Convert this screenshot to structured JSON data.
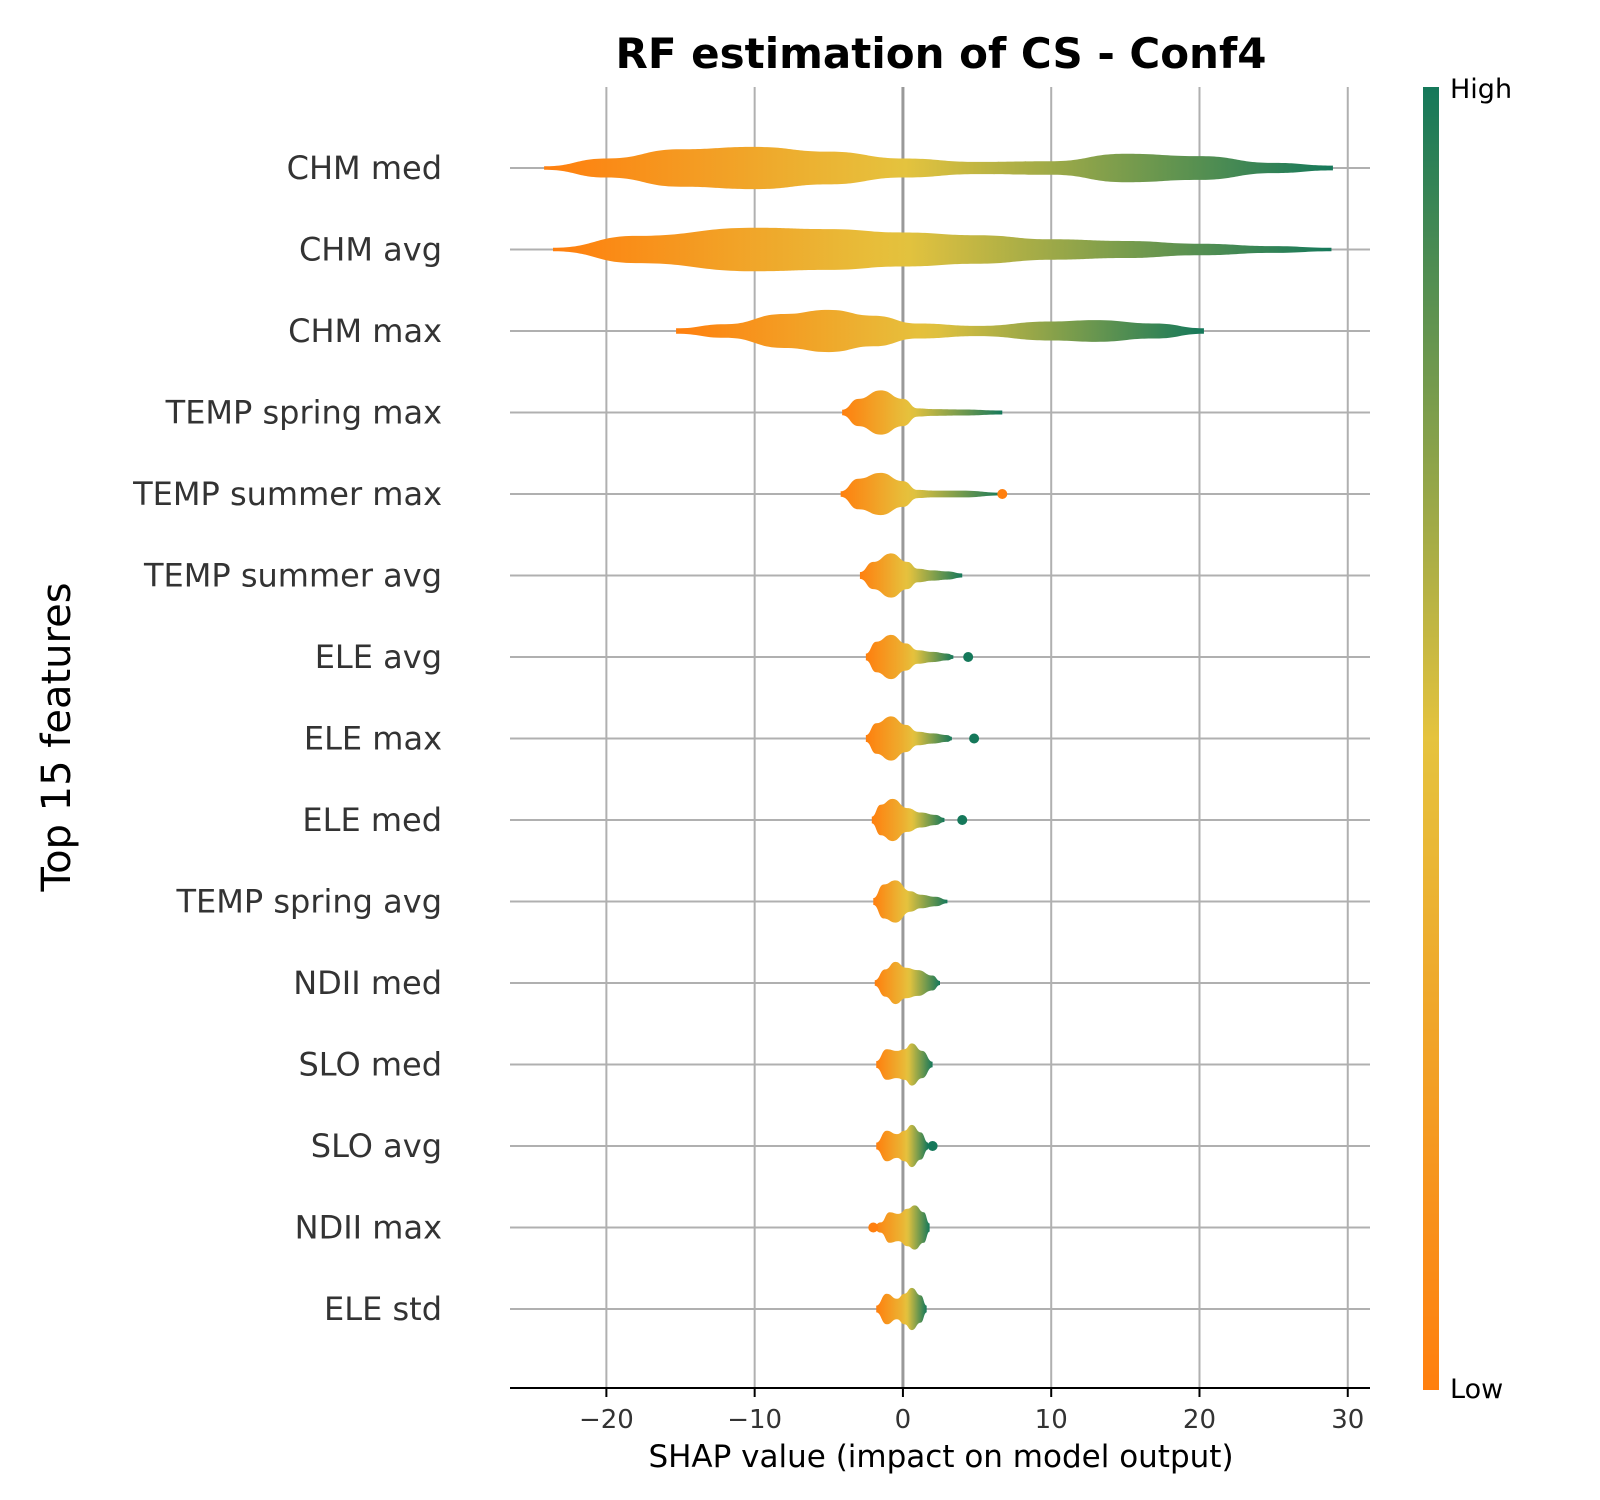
{
  "chart_data": {
    "type": "violin",
    "title": "RF estimation of CS - Conf4",
    "xlabel": "SHAP value (impact on model output)",
    "ylabel": "Top 15 features",
    "xlim": [
      -26.5,
      31.5
    ],
    "xticks": [
      -20,
      -10,
      0,
      10,
      20,
      30
    ],
    "xtick_labels": [
      "−20",
      "−10",
      "0",
      "10",
      "20",
      "30"
    ],
    "grid": true,
    "colorbar": {
      "high_label": "High",
      "low_label": "Low",
      "high_color": "#15785a",
      "mid_color": "#e5c33e",
      "low_color": "#ff7f0e"
    },
    "features": [
      {
        "name": "CHM med",
        "min": -24.2,
        "max": 29.0,
        "zero_color": 0.5,
        "profile": [
          [
            -24.2,
            0.05
          ],
          [
            -20,
            0.28
          ],
          [
            -15,
            0.55
          ],
          [
            -10,
            0.62
          ],
          [
            -5,
            0.48
          ],
          [
            0,
            0.28
          ],
          [
            5,
            0.18
          ],
          [
            10,
            0.2
          ],
          [
            15,
            0.42
          ],
          [
            20,
            0.35
          ],
          [
            25,
            0.15
          ],
          [
            29,
            0.07
          ]
        ]
      },
      {
        "name": "CHM avg",
        "min": -23.6,
        "max": 28.9,
        "zero_color": 0.5,
        "profile": [
          [
            -23.6,
            0.05
          ],
          [
            -18,
            0.4
          ],
          [
            -10,
            0.64
          ],
          [
            -5,
            0.6
          ],
          [
            0,
            0.5
          ],
          [
            5,
            0.42
          ],
          [
            10,
            0.3
          ],
          [
            15,
            0.25
          ],
          [
            20,
            0.17
          ],
          [
            25,
            0.1
          ],
          [
            28.9,
            0.05
          ]
        ]
      },
      {
        "name": "CHM max",
        "min": -15.3,
        "max": 20.3,
        "zero_color": 0.45,
        "profile": [
          [
            -15.3,
            0.08
          ],
          [
            -12,
            0.2
          ],
          [
            -8,
            0.5
          ],
          [
            -5,
            0.62
          ],
          [
            -2,
            0.45
          ],
          [
            1,
            0.22
          ],
          [
            5,
            0.15
          ],
          [
            10,
            0.28
          ],
          [
            13,
            0.32
          ],
          [
            17,
            0.22
          ],
          [
            20.3,
            0.08
          ]
        ]
      },
      {
        "name": "TEMP spring max",
        "min": -4.1,
        "max": 6.7,
        "zero_color": 0.45,
        "profile": [
          [
            -4.1,
            0.08
          ],
          [
            -3,
            0.4
          ],
          [
            -1.5,
            0.65
          ],
          [
            0,
            0.4
          ],
          [
            1,
            0.12
          ],
          [
            2,
            0.1
          ],
          [
            4,
            0.09
          ],
          [
            6.7,
            0.06
          ]
        ]
      },
      {
        "name": "TEMP summer max",
        "min": -4.2,
        "max": 6.7,
        "zero_color": 0.45,
        "profile": [
          [
            -4.2,
            0.08
          ],
          [
            -3,
            0.45
          ],
          [
            -1.5,
            0.62
          ],
          [
            0,
            0.38
          ],
          [
            1,
            0.12
          ],
          [
            2,
            0.1
          ],
          [
            4,
            0.1
          ],
          [
            6.7,
            0.04
          ]
        ]
      },
      {
        "name": "TEMP summer avg",
        "min": -2.9,
        "max": 4.0,
        "zero_color": 0.45,
        "profile": [
          [
            -2.9,
            0.1
          ],
          [
            -2,
            0.4
          ],
          [
            -0.8,
            0.65
          ],
          [
            0.3,
            0.4
          ],
          [
            1,
            0.2
          ],
          [
            2,
            0.15
          ],
          [
            3,
            0.12
          ],
          [
            4,
            0.06
          ]
        ]
      },
      {
        "name": "ELE avg",
        "min": -2.5,
        "max": 3.4,
        "zero_color": 0.35,
        "profile": [
          [
            -2.5,
            0.1
          ],
          [
            -1.8,
            0.45
          ],
          [
            -0.8,
            0.65
          ],
          [
            0.2,
            0.4
          ],
          [
            1,
            0.2
          ],
          [
            2,
            0.15
          ],
          [
            3,
            0.1
          ],
          [
            3.4,
            0.05
          ]
        ]
      },
      {
        "name": "ELE max",
        "min": -2.5,
        "max": 3.3,
        "zero_color": 0.35,
        "profile": [
          [
            -2.5,
            0.1
          ],
          [
            -1.8,
            0.45
          ],
          [
            -0.8,
            0.65
          ],
          [
            0.2,
            0.4
          ],
          [
            1,
            0.2
          ],
          [
            2,
            0.15
          ],
          [
            3,
            0.1
          ],
          [
            3.3,
            0.05
          ]
        ]
      },
      {
        "name": "ELE med",
        "min": -2.1,
        "max": 2.8,
        "zero_color": 0.35,
        "profile": [
          [
            -2.1,
            0.1
          ],
          [
            -1.5,
            0.45
          ],
          [
            -0.7,
            0.62
          ],
          [
            0.3,
            0.35
          ],
          [
            1.2,
            0.22
          ],
          [
            2.2,
            0.15
          ],
          [
            2.8,
            0.06
          ]
        ]
      },
      {
        "name": "TEMP spring avg",
        "min": -2.0,
        "max": 3.0,
        "zero_color": 0.45,
        "profile": [
          [
            -2.0,
            0.1
          ],
          [
            -1.3,
            0.5
          ],
          [
            -0.5,
            0.62
          ],
          [
            0.5,
            0.3
          ],
          [
            1.2,
            0.2
          ],
          [
            2.2,
            0.14
          ],
          [
            3.0,
            0.05
          ]
        ]
      },
      {
        "name": "NDII med",
        "min": -1.9,
        "max": 2.5,
        "zero_color": 0.4,
        "profile": [
          [
            -1.9,
            0.08
          ],
          [
            -1.2,
            0.4
          ],
          [
            -0.5,
            0.62
          ],
          [
            0.2,
            0.45
          ],
          [
            1,
            0.38
          ],
          [
            2,
            0.22
          ],
          [
            2.5,
            0.06
          ]
        ]
      },
      {
        "name": "SLO med",
        "min": -1.8,
        "max": 2.0,
        "zero_color": 0.4,
        "profile": [
          [
            -1.8,
            0.1
          ],
          [
            -1.1,
            0.45
          ],
          [
            -0.4,
            0.4
          ],
          [
            0.1,
            0.45
          ],
          [
            0.6,
            0.62
          ],
          [
            1.3,
            0.4
          ],
          [
            2.0,
            0.08
          ]
        ]
      },
      {
        "name": "SLO avg",
        "min": -1.8,
        "max": 1.7,
        "zero_color": 0.4,
        "profile": [
          [
            -1.8,
            0.1
          ],
          [
            -1.1,
            0.45
          ],
          [
            -0.4,
            0.35
          ],
          [
            0.1,
            0.45
          ],
          [
            0.6,
            0.62
          ],
          [
            1.2,
            0.4
          ],
          [
            1.7,
            0.1
          ]
        ]
      },
      {
        "name": "NDII max",
        "min": -2.0,
        "max": 1.8,
        "zero_color": 0.4,
        "profile": [
          [
            -2.0,
            0.05
          ],
          [
            -1.5,
            0.15
          ],
          [
            -0.9,
            0.45
          ],
          [
            -0.3,
            0.4
          ],
          [
            0.3,
            0.55
          ],
          [
            0.8,
            0.65
          ],
          [
            1.4,
            0.45
          ],
          [
            1.8,
            0.12
          ]
        ]
      },
      {
        "name": "ELE std",
        "min": -1.8,
        "max": 1.6,
        "zero_color": 0.4,
        "profile": [
          [
            -1.8,
            0.1
          ],
          [
            -1.1,
            0.45
          ],
          [
            -0.4,
            0.3
          ],
          [
            0.1,
            0.45
          ],
          [
            0.6,
            0.62
          ],
          [
            1.2,
            0.4
          ],
          [
            1.6,
            0.1
          ]
        ]
      }
    ],
    "outliers": [
      {
        "feature": "TEMP summer max",
        "x": 6.7,
        "color": 0.0
      },
      {
        "feature": "ELE avg",
        "x": 4.4,
        "color": 1.0
      },
      {
        "feature": "ELE max",
        "x": 4.8,
        "color": 1.0
      },
      {
        "feature": "ELE med",
        "x": 4.0,
        "color": 1.0
      },
      {
        "feature": "SLO avg",
        "x": 2.0,
        "color": 1.0
      },
      {
        "feature": "NDII max",
        "x": -2.0,
        "color": 0.0
      }
    ]
  }
}
